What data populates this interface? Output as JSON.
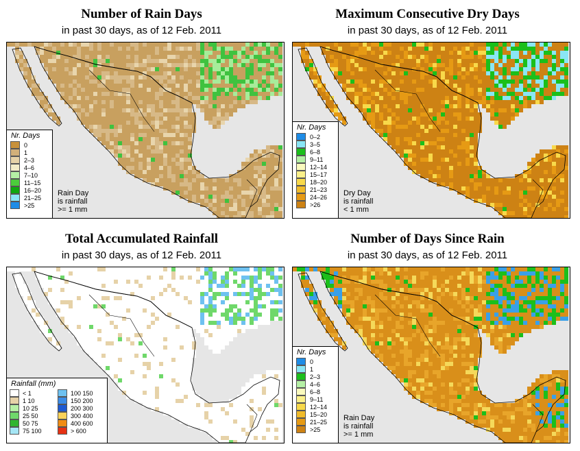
{
  "panels": [
    {
      "title": "Number of Rain Days",
      "subtitle": "in past 30 days, as of  12 Feb. 2011",
      "legend_title": "Nr. Days",
      "legend": [
        {
          "label": "0",
          "color": "#c8913a"
        },
        {
          "label": "1",
          "color": "#d2b07a"
        },
        {
          "label": "2–3",
          "color": "#e6d2a8"
        },
        {
          "label": "4–6",
          "color": "#f3ecc8"
        },
        {
          "label": "7–10",
          "color": "#b5f0a5"
        },
        {
          "label": "11–15",
          "color": "#4ccc3c"
        },
        {
          "label": "16–20",
          "color": "#0fa70f"
        },
        {
          "label": "21–25",
          "color": "#8ae6f5"
        },
        {
          "label": ">25",
          "color": "#1e8ce6"
        }
      ],
      "note": [
        "Rain Day",
        "is rainfall",
        ">= 1 mm"
      ],
      "palette": {
        "land": "#c8a05f",
        "alt": "#d7b987",
        "light": "#e8d5ac",
        "wet1": "#3fc23f",
        "wet2": "#a7ec9a"
      }
    },
    {
      "title": "Maximum Consecutive Dry Days",
      "subtitle": "in past 30 days, as of  12 Feb. 2011",
      "legend_title": "Nr. Days",
      "legend": [
        {
          "label": "0–2",
          "color": "#1e8ce6"
        },
        {
          "label": "3–5",
          "color": "#8ae6f5"
        },
        {
          "label": "6–8",
          "color": "#1bbf1b"
        },
        {
          "label": "9–11",
          "color": "#b5f0a5"
        },
        {
          "label": "12–14",
          "color": "#fafabe"
        },
        {
          "label": "15–17",
          "color": "#fbf08a"
        },
        {
          "label": "18–20",
          "color": "#f8d94a"
        },
        {
          "label": "21–23",
          "color": "#f0bb2a"
        },
        {
          "label": "24–26",
          "color": "#e69a14"
        },
        {
          "label": ">26",
          "color": "#cd8214"
        }
      ],
      "note": [
        "Dry Day",
        "is rainfall",
        "< 1 mm"
      ],
      "palette": {
        "land": "#cd8214",
        "alt": "#e69a14",
        "light": "#f8d94a",
        "wet1": "#1bbf1b",
        "wet2": "#8ae6f5"
      }
    },
    {
      "title": "Total Accumulated Rainfall",
      "subtitle": "in past 30 days, as of  12 Feb. 2011",
      "legend_title": "Rainfall (mm)",
      "legend_cols": [
        [
          {
            "label": "< 1",
            "color": "#ffffff"
          },
          {
            "label": "1    10",
            "color": "#e6d2a8"
          },
          {
            "label": "10    25",
            "color": "#b5f0a5"
          },
          {
            "label": "25    50",
            "color": "#6fd86a"
          },
          {
            "label": "50    75",
            "color": "#2fb52f"
          },
          {
            "label": "75  100",
            "color": "#a5e6f5"
          }
        ],
        [
          {
            "label": "100  150",
            "color": "#6ec1f0"
          },
          {
            "label": "150  200",
            "color": "#3c8ce6"
          },
          {
            "label": "200  300",
            "color": "#1e5ad2"
          },
          {
            "label": "300  400",
            "color": "#fad25a"
          },
          {
            "label": "400  600",
            "color": "#f08c14"
          },
          {
            "label": "> 600",
            "color": "#e63214"
          }
        ]
      ],
      "palette": {
        "land": "#ffffff",
        "alt": "#ffffff",
        "light": "#e6d2a8",
        "wet1": "#6fd86a",
        "wet2": "#6ec1f0"
      }
    },
    {
      "title": "Number of Days Since Rain",
      "subtitle": "in past 30 days, as of  12 Feb. 2011",
      "legend_title": "Nr. Days",
      "legend": [
        {
          "label": "0",
          "color": "#1e8ce6"
        },
        {
          "label": "1",
          "color": "#8ae6f5"
        },
        {
          "label": "2–3",
          "color": "#1bbf1b"
        },
        {
          "label": "4–6",
          "color": "#b5f0a5"
        },
        {
          "label": "6–8",
          "color": "#fafabe"
        },
        {
          "label": "9–11",
          "color": "#fbf08a"
        },
        {
          "label": "12–14",
          "color": "#f8d94a"
        },
        {
          "label": "15–20",
          "color": "#f0bb2a"
        },
        {
          "label": "21–25",
          "color": "#e69a14"
        },
        {
          "label": ">25",
          "color": "#cd8214"
        }
      ],
      "note": [
        "Rain Day",
        "is rainfall",
        ">= 1 mm"
      ],
      "palette": {
        "land": "#d98f1a",
        "alt": "#e8a52a",
        "light": "#f5d95a",
        "wet1": "#1bbf1b",
        "wet2": "#3aa0e8"
      }
    }
  ],
  "map_colors": {
    "water": "#e6e6e6",
    "border": "#000000"
  }
}
